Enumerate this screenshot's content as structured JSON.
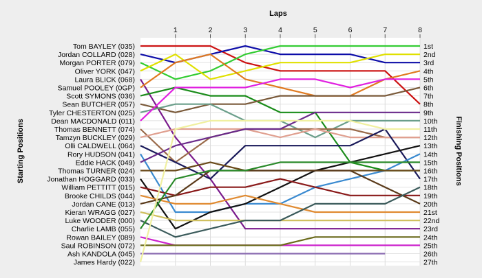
{
  "chart_data": {
    "type": "line",
    "title": "",
    "x_axis_title": "Laps",
    "y_left_title": "Starting Positions",
    "y_right_title": "Finishing Positions",
    "x_ticks": [
      1,
      2,
      3,
      4,
      5,
      6,
      7,
      8
    ],
    "y_range": [
      1,
      27
    ],
    "grid": "on",
    "legend": "none",
    "start_labels": [
      "Tom BAYLEY (035)",
      "Jordan COLLARD (028)",
      "Morgan PORTER (079)",
      "Oliver YORK (047)",
      "Laura BLICK (068)",
      "Samuel POOLEY (0GP)",
      "Scott SYMONS (036)",
      "Sean BUTCHER (057)",
      "Tyler CHESTERTON (025)",
      "Dean MACDONALD (011)",
      "Thomas BENNETT (074)",
      "Tamzyn BUCKLEY (029)",
      "Olli CALDWELL (064)",
      "Rory HUDSON (041)",
      "Eddie HACK (049)",
      "Thomas TURNER (024)",
      "Jonathan HOGGARD (033)",
      "William PETTITT (015)",
      "Brooke CHILDS (044)",
      "Jordan CANE (013)",
      "Kieran WRAGG (027)",
      "Luke WOODER (000)",
      "Charlie LAMB (055)",
      "Rowan BAILEY (089)",
      "Saul ROBINSON (072)",
      "Ash KANDOLA (045)",
      "James Hardy (022)"
    ],
    "finish_labels": [
      "1st",
      "2nd",
      "3rd",
      "4th",
      "5th",
      "6th",
      "7th",
      "8th",
      "9th",
      "10th",
      "11th",
      "12th",
      "13th",
      "14th",
      "15th",
      "16th",
      "17th",
      "18th",
      "19th",
      "20th",
      "21st",
      "22nd",
      "23rd",
      "24th",
      "25th",
      "26th",
      "27th"
    ],
    "series": [
      {
        "start": 1,
        "positions": [
          1,
          1,
          3,
          4,
          4,
          4,
          4,
          8
        ],
        "color": "#cc1111"
      },
      {
        "start": 2,
        "positions": [
          3,
          2,
          1,
          2,
          2,
          2,
          3,
          3
        ],
        "color": "#0d0da8"
      },
      {
        "start": 3,
        "positions": [
          5,
          4,
          2,
          1,
          1,
          1,
          1,
          1
        ],
        "color": "#33cc33"
      },
      {
        "start": 4,
        "positions": [
          2,
          5,
          4,
          3,
          3,
          3,
          2,
          2
        ],
        "color": "#e0e000"
      },
      {
        "start": 5,
        "positions": [
          12,
          17,
          23,
          23,
          23,
          23,
          23,
          23
        ],
        "color": "#7a1a8c"
      },
      {
        "start": 6,
        "positions": [
          3,
          2,
          5,
          6,
          7,
          7,
          5,
          4
        ],
        "color": "#e07a20"
      },
      {
        "start": 7,
        "positions": [
          6,
          7,
          7,
          9,
          9,
          15,
          16,
          16
        ],
        "color": "#1a8c1a"
      },
      {
        "start": 8,
        "positions": [
          9,
          8,
          8,
          7,
          7,
          7,
          7,
          6
        ],
        "color": "#7a5a3a"
      },
      {
        "start": 9,
        "positions": [
          8,
          8,
          10,
          10,
          12,
          10,
          10,
          10
        ],
        "color": "#6a9e8a"
      },
      {
        "start": 10,
        "positions": [
          6,
          6,
          6,
          5,
          5,
          6,
          5,
          5
        ],
        "color": "#e020e0"
      },
      {
        "start": 11,
        "positions": [
          15,
          12,
          11,
          11,
          11,
          11,
          12,
          12
        ],
        "color": "#9a6a4a"
      },
      {
        "start": 12,
        "positions": [
          11,
          11,
          11,
          12,
          11,
          12,
          12,
          12
        ],
        "color": "#e0a090"
      },
      {
        "start": 13,
        "positions": [
          15,
          17,
          13,
          13,
          13,
          13,
          11,
          17
        ],
        "color": "#1a1a5a"
      },
      {
        "start": 14,
        "positions": [
          21,
          21,
          20,
          20,
          18,
          17,
          16,
          14
        ],
        "color": "#3a8ad0"
      },
      {
        "start": 15,
        "positions": [
          13,
          12,
          11,
          11,
          9,
          9,
          9,
          9
        ],
        "color": "#6a2a8a"
      },
      {
        "start": 16,
        "positions": [
          16,
          15,
          16,
          16,
          16,
          16,
          16,
          16
        ],
        "color": "#6a4a1a"
      },
      {
        "start": 17,
        "positions": [
          23,
          21,
          20,
          18,
          16,
          15,
          14,
          13
        ],
        "color": "#111111"
      },
      {
        "start": 18,
        "positions": [
          19,
          18,
          18,
          17,
          18,
          19,
          19,
          19
        ],
        "color": "#8a1a1a"
      },
      {
        "start": 19,
        "positions": [
          20,
          20,
          19,
          20,
          21,
          21,
          21,
          21
        ],
        "color": "#e08a30"
      },
      {
        "start": 20,
        "positions": [
          19,
          16,
          16,
          16,
          16,
          16,
          18,
          20
        ],
        "color": "#5a3a1a"
      },
      {
        "start": 21,
        "positions": [
          22,
          22,
          22,
          22,
          22,
          22,
          22,
          22
        ],
        "color": "#d0c060"
      },
      {
        "start": 22,
        "positions": [
          24,
          23,
          22,
          22,
          20,
          20,
          20,
          18
        ],
        "color": "#3a5a5a"
      },
      {
        "start": 23,
        "positions": [
          17,
          16,
          16,
          15,
          15,
          15,
          15,
          15
        ],
        "color": "#2a8a2a"
      },
      {
        "start": 24,
        "positions": [
          25,
          25,
          25,
          25,
          25,
          25,
          25,
          25
        ],
        "color": "#cc22cc"
      },
      {
        "start": 25,
        "positions": [
          25,
          25,
          25,
          25,
          24,
          24,
          24,
          24
        ],
        "color": "#6a6a1a"
      },
      {
        "start": 26,
        "positions": [
          26,
          26,
          26,
          26,
          26,
          26,
          26
        ],
        "color": "#8a6ab0"
      },
      {
        "start": 27,
        "positions": [
          11,
          10,
          10,
          10,
          10,
          10,
          11,
          11
        ],
        "color": "#f0f0a0"
      }
    ]
  }
}
